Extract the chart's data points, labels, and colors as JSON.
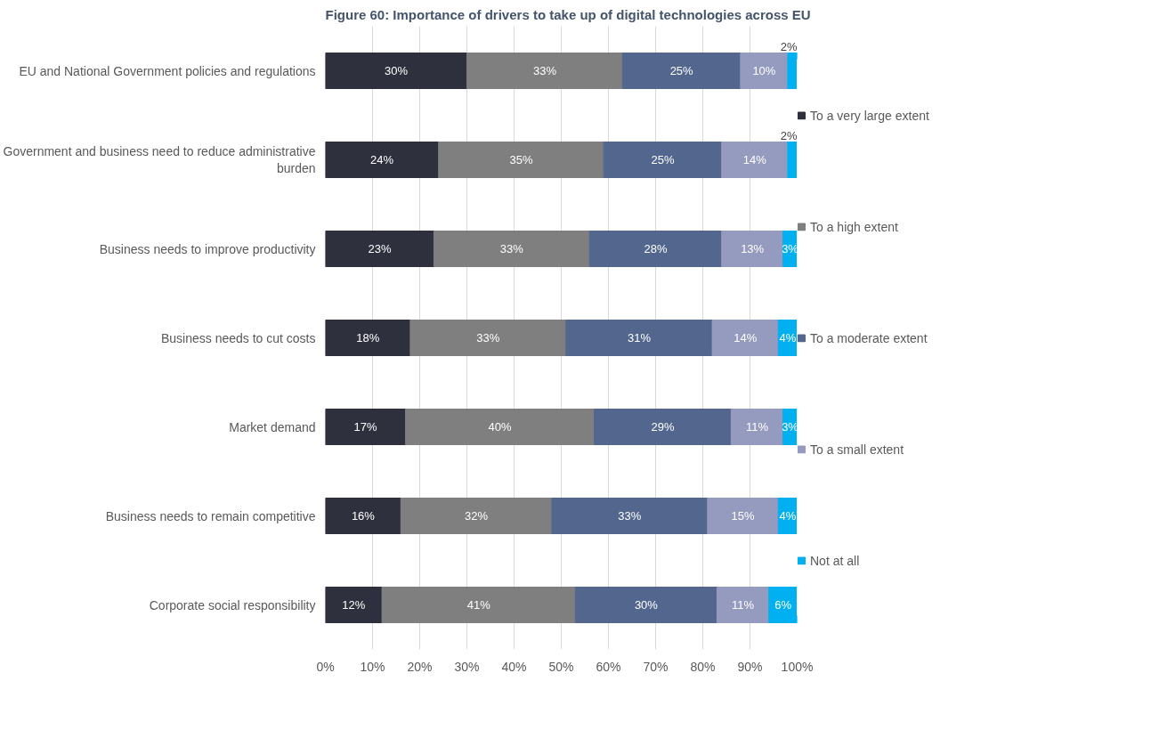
{
  "chart_data": {
    "type": "bar",
    "orientation": "horizontal",
    "stacked": true,
    "title": "Figure 60: Importance of drivers to take up of digital technologies across EU",
    "categories": [
      "EU and National Government policies and regulations",
      "Government and business need to reduce administrative\nburden",
      "Business needs to improve productivity",
      "Business needs to cut costs",
      "Market demand",
      "Business needs to remain competitive",
      "Corporate social responsibility"
    ],
    "series": [
      {
        "name": "To a very large extent",
        "color": "#2e303e",
        "values": [
          30,
          24,
          23,
          18,
          17,
          16,
          12
        ],
        "value_labels": [
          "30%",
          "24%",
          "23%",
          "18%",
          "17%",
          "16%",
          "12%"
        ]
      },
      {
        "name": "To a high extent",
        "color": "#7f7f7f",
        "values": [
          33,
          35,
          33,
          33,
          40,
          32,
          41
        ],
        "value_labels": [
          "33%",
          "35%",
          "33%",
          "33%",
          "40%",
          "32%",
          "41%"
        ]
      },
      {
        "name": "To a moderate extent",
        "color": "#52668e",
        "values": [
          25,
          25,
          28,
          31,
          29,
          33,
          30
        ],
        "value_labels": [
          "25%",
          "25%",
          "28%",
          "31%",
          "29%",
          "33%",
          "30%"
        ]
      },
      {
        "name": "To a small extent",
        "color": "#959bbf",
        "values": [
          10,
          14,
          13,
          14,
          11,
          15,
          11
        ],
        "value_labels": [
          "10%",
          "14%",
          "13%",
          "14%",
          "11%",
          "15%",
          "11%"
        ]
      },
      {
        "name": "Not at all",
        "color": "#00b0f0",
        "values": [
          2,
          2,
          3,
          4,
          3,
          4,
          6
        ],
        "value_labels": [
          "2%",
          "2%",
          "3%",
          "4%",
          "3%",
          "4%",
          "6%"
        ]
      }
    ],
    "xlim": [
      0,
      100
    ],
    "xticks": [
      {
        "value": 0,
        "label": "0%"
      },
      {
        "value": 10,
        "label": "10%"
      },
      {
        "value": 20,
        "label": "20%"
      },
      {
        "value": 30,
        "label": "30%"
      },
      {
        "value": 40,
        "label": "40%"
      },
      {
        "value": 50,
        "label": "50%"
      },
      {
        "value": 60,
        "label": "60%"
      },
      {
        "value": 70,
        "label": "70%"
      },
      {
        "value": 80,
        "label": "80%"
      },
      {
        "value": 90,
        "label": "90%"
      },
      {
        "value": 100,
        "label": "100%"
      }
    ],
    "grid": "x",
    "legend": "right"
  }
}
